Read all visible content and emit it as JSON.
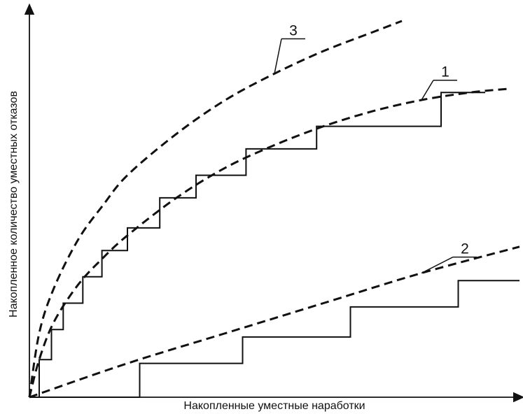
{
  "chart_data": {
    "type": "line",
    "title": "",
    "xlabel": "Накопленные уместные наработки",
    "ylabel": "Накопленное количество уместных отказов",
    "xlim": [
      0,
      100
    ],
    "ylim": [
      0,
      100
    ],
    "grid": false,
    "ticks": false,
    "series": [
      {
        "name": "1",
        "style": "dashed",
        "x": [
          0,
          2,
          5,
          10,
          15,
          20,
          30,
          40,
          50,
          60,
          70,
          80,
          90,
          98
        ],
        "y": [
          0,
          10,
          20,
          30,
          37,
          43,
          53,
          61,
          67,
          72,
          76,
          79,
          81,
          82
        ]
      },
      {
        "name": "2",
        "style": "dashed",
        "x": [
          0,
          20,
          40,
          60,
          80,
          100
        ],
        "y": [
          0,
          9,
          17,
          25,
          33,
          40
        ]
      },
      {
        "name": "3",
        "style": "dashed",
        "x": [
          0,
          2,
          5,
          10,
          15,
          20,
          30,
          40,
          50,
          60,
          70,
          76
        ],
        "y": [
          0,
          17,
          29,
          42,
          51,
          59,
          70,
          79,
          86,
          92,
          97,
          100
        ]
      },
      {
        "name": "",
        "style": "step",
        "x": [
          0,
          1.3,
          2,
          2.5,
          4.5,
          5,
          6.9,
          7.5,
          10.9,
          11.5,
          14.8,
          15.5,
          20,
          20.5,
          26.6,
          27,
          34,
          34.5,
          44.2,
          45,
          58.6,
          59,
          83.5,
          84,
          93
        ],
        "y": [
          0,
          0,
          10,
          10,
          18,
          18,
          25,
          25,
          32,
          32,
          39,
          39,
          45,
          45,
          53,
          53,
          59,
          59,
          66,
          66,
          72,
          72,
          72,
          81,
          81
        ]
      },
      {
        "name": "",
        "style": "step",
        "x": [
          0,
          22,
          22.5,
          43,
          43.5,
          65,
          65.5,
          87,
          87.5,
          100
        ],
        "y": [
          0,
          0,
          9,
          9,
          16,
          16,
          24,
          24,
          31,
          31
        ]
      }
    ],
    "curve_labels": [
      {
        "text": "3",
        "series": "3",
        "x": 54,
        "y": 96
      },
      {
        "text": "1",
        "series": "1",
        "x": 85,
        "y": 85
      },
      {
        "text": "2",
        "series": "2",
        "x": 89,
        "y": 38
      }
    ]
  }
}
